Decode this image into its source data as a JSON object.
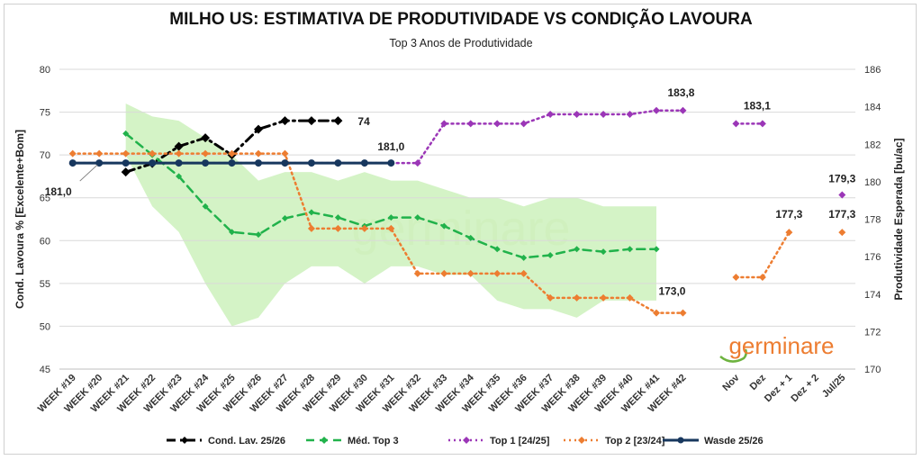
{
  "chart_data": {
    "type": "line",
    "title": "MILHO US: ESTIMATIVA DE PRODUTIVIDADE VS CONDIÇÃO LAVOURA",
    "subtitle": "Top 3 Anos de Produtividade",
    "categories": [
      "WEEK #19",
      "WEEK #20",
      "WEEK #21",
      "WEEK #22",
      "WEEK #23",
      "WEEK #24",
      "WEEK #25",
      "WEEK #26",
      "WEEK #27",
      "WEEK #28",
      "WEEK #29",
      "WEEK #30",
      "WEEK #31",
      "WEEK #32",
      "WEEK #33",
      "WEEK #34",
      "WEEK #35",
      "WEEK #36",
      "WEEK #37",
      "WEEK #38",
      "WEEK #39",
      "WEEK #40",
      "WEEK #41",
      "WEEK #42",
      "",
      "Nov",
      "Dez",
      "Dez + 1",
      "Dez + 2",
      "Jul/25"
    ],
    "y_left": {
      "label": "Cond. Lavoura % [Excelente+Bom]",
      "ylim": [
        45,
        80
      ],
      "ticks": [
        45,
        50,
        55,
        60,
        65,
        70,
        75,
        80
      ]
    },
    "y_right": {
      "label": "Produtividade Esperada [bu/ac]",
      "ylim": [
        170,
        186
      ],
      "ticks": [
        170,
        172,
        174,
        176,
        178,
        180,
        182,
        184,
        186
      ]
    },
    "range_band": {
      "name": "Top 3 range",
      "axis": "left",
      "upper": [
        null,
        null,
        76,
        74.5,
        74,
        72,
        70,
        67,
        68,
        68,
        67,
        68,
        67,
        67,
        66,
        65,
        65,
        64,
        65,
        65,
        64,
        64,
        64,
        null,
        null,
        null,
        null,
        null,
        null,
        null
      ],
      "lower": [
        null,
        null,
        70,
        64,
        61,
        55,
        50,
        51,
        55,
        57,
        57,
        55,
        57,
        57,
        56,
        56,
        53,
        52,
        52,
        51,
        53,
        53,
        53,
        null,
        null,
        null,
        null,
        null,
        null,
        null
      ]
    },
    "series": [
      {
        "name": "Cond. Lav. 25/26",
        "axis": "left",
        "color": "#000000",
        "style": "dashdot",
        "values": [
          null,
          null,
          68,
          69,
          71,
          72,
          70,
          73,
          74,
          74,
          74,
          null,
          null,
          null,
          null,
          null,
          null,
          null,
          null,
          null,
          null,
          null,
          null,
          null,
          null,
          null,
          null,
          null,
          null,
          null
        ]
      },
      {
        "name": "Méd. Top 3",
        "axis": "left",
        "color": "#21b24b",
        "style": "dashed",
        "values": [
          null,
          null,
          72.5,
          70,
          67.5,
          64,
          61,
          60.7,
          62.6,
          63.3,
          62.7,
          61.7,
          62.7,
          62.7,
          61.7,
          60.3,
          59,
          58,
          58.3,
          59,
          58.7,
          59,
          59,
          null,
          null,
          null,
          null,
          null,
          null,
          null
        ]
      },
      {
        "name": "Top 1 [24/25]",
        "axis": "right",
        "color": "#9b36b7",
        "style": "dotted",
        "values": [
          181,
          181,
          181,
          181,
          181,
          181,
          181,
          181,
          181,
          181,
          181,
          181,
          181,
          181,
          183.1,
          183.1,
          183.1,
          183.1,
          183.6,
          183.6,
          183.6,
          183.6,
          183.8,
          183.8,
          null,
          183.1,
          183.1,
          null,
          null,
          179.3
        ]
      },
      {
        "name": "Top 2 [23/24]",
        "axis": "right",
        "color": "#ed7d31",
        "style": "dotted",
        "values": [
          181.5,
          181.5,
          181.5,
          181.5,
          181.5,
          181.5,
          181.5,
          181.5,
          181.5,
          177.5,
          177.5,
          177.5,
          177.5,
          175.1,
          175.1,
          175.1,
          175.1,
          175.1,
          173.8,
          173.8,
          173.8,
          173.8,
          173,
          173,
          null,
          174.9,
          174.9,
          177.3,
          null,
          177.3
        ]
      },
      {
        "name": "Wasde 25/26",
        "axis": "right",
        "color": "#17375e",
        "style": "solid",
        "values": [
          181,
          181,
          181,
          181,
          181,
          181,
          181,
          181,
          181,
          181,
          181,
          181,
          181,
          null,
          null,
          null,
          null,
          null,
          null,
          null,
          null,
          null,
          null,
          null,
          null,
          null,
          null,
          null,
          null,
          null
        ]
      }
    ],
    "annotations": [
      {
        "text": "181,0",
        "series": "Wasde 25/26",
        "category": "WEEK #19"
      },
      {
        "text": "74",
        "series": "Cond. Lav. 25/26",
        "category": "WEEK #29"
      },
      {
        "text": "181,0",
        "series": "Wasde 25/26",
        "category": "WEEK #31"
      },
      {
        "text": "183,8",
        "series": "Top 1 [24/25]",
        "category": "WEEK #42"
      },
      {
        "text": "183,1",
        "series": "Top 1 [24/25]",
        "category": "Dez"
      },
      {
        "text": "179,3",
        "series": "Top 1 [24/25]",
        "category": "Jul/25"
      },
      {
        "text": "177,3",
        "series": "Top 2 [23/24]",
        "category": "Dez + 1"
      },
      {
        "text": "177,3",
        "series": "Top 2 [23/24]",
        "category": "Jul/25"
      },
      {
        "text": "173,0",
        "series": "Top 2 [23/24]",
        "category": "WEEK #42"
      }
    ],
    "watermark": "germinare",
    "logo": "germinare"
  }
}
